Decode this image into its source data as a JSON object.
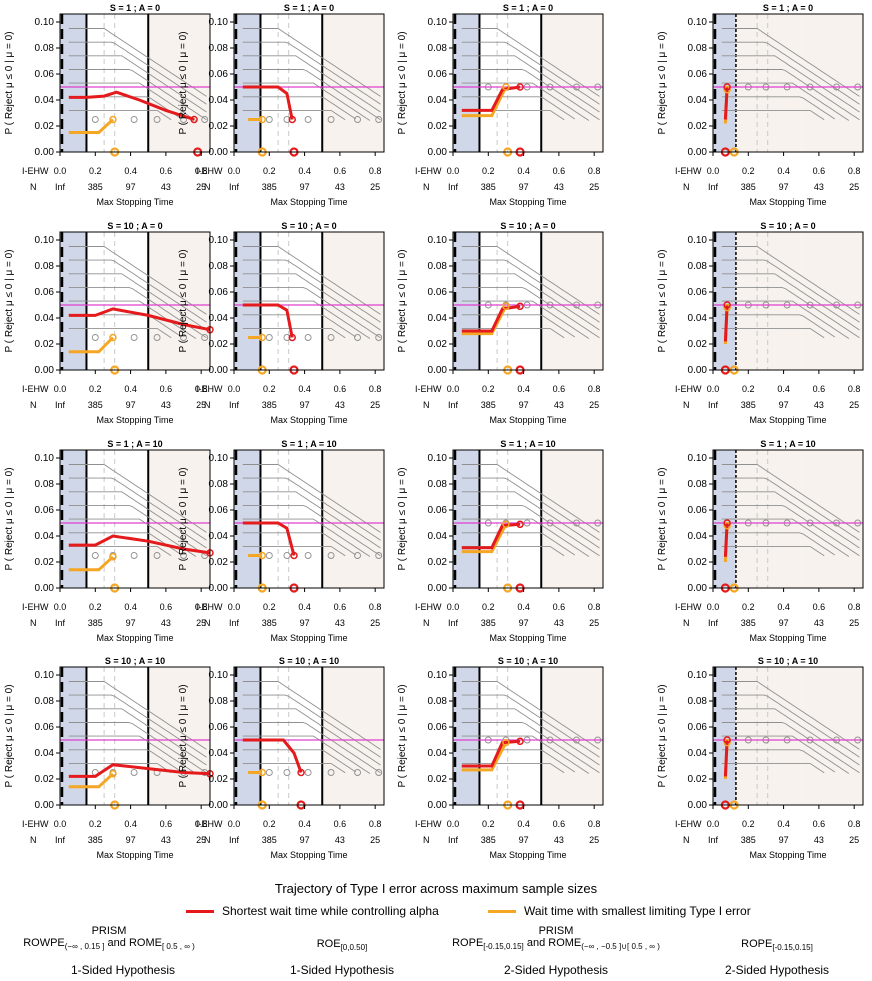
{
  "colors": {
    "red": "#e41a1c",
    "orange": "#f5a623",
    "magenta": "#e040d0",
    "grey": "#909090",
    "left_shade": "#cfd7e8",
    "right_shade": "#f7f2ee",
    "dash": "#c8c8c8"
  },
  "axis_text": {
    "ylabel": "P ( Reject μ ≤ 0 | μ = 0)",
    "xlabel": "Max Stopping Time",
    "row1_label": "I-EHW",
    "row2_label": "N",
    "x_ticks": [
      "0.0",
      "0.2",
      "0.4",
      "0.6",
      "0.8"
    ],
    "n_ticks": [
      "Inf",
      "385",
      "97",
      "43",
      "25"
    ],
    "y_ticks": [
      "0.00",
      "0.02",
      "0.04",
      "0.06",
      "0.08",
      "0.10"
    ]
  },
  "chart_data": [
    {
      "panel": "r1c1",
      "type": "line",
      "title": "S = 1 ; A = 0",
      "xlim": [
        0,
        0.85
      ],
      "ylim": [
        0,
        0.1
      ],
      "alpha": 0.05,
      "red_series": [
        [
          0.05,
          0.042
        ],
        [
          0.15,
          0.042
        ],
        [
          0.25,
          0.043
        ],
        [
          0.32,
          0.046
        ],
        [
          0.45,
          0.04
        ],
        [
          0.6,
          0.032
        ],
        [
          0.76,
          0.025
        ]
      ],
      "orange_series": [
        [
          0.05,
          0.015
        ],
        [
          0.22,
          0.015
        ],
        [
          0.3,
          0.025
        ]
      ],
      "red_marker": 0.78,
      "orange_marker": 0.31
    },
    {
      "panel": "r1c2",
      "type": "line",
      "title": "S = 1 ; A = 0",
      "xlim": [
        0,
        0.85
      ],
      "ylim": [
        0,
        0.1
      ],
      "alpha": 0.05,
      "red_series": [
        [
          0.05,
          0.05
        ],
        [
          0.25,
          0.05
        ],
        [
          0.3,
          0.045
        ],
        [
          0.33,
          0.025
        ]
      ],
      "orange_series": [
        [
          0.08,
          0.025
        ],
        [
          0.16,
          0.025
        ]
      ],
      "red_marker": 0.34,
      "orange_marker": 0.16
    },
    {
      "panel": "r1c3",
      "type": "line",
      "title": "S = 1 ; A = 0",
      "xlim": [
        0,
        0.85
      ],
      "ylim": [
        0,
        0.1
      ],
      "alpha": 0.05,
      "red_series": [
        [
          0.05,
          0.032
        ],
        [
          0.22,
          0.032
        ],
        [
          0.28,
          0.048
        ],
        [
          0.38,
          0.05
        ]
      ],
      "orange_series": [
        [
          0.05,
          0.028
        ],
        [
          0.22,
          0.028
        ],
        [
          0.3,
          0.05
        ]
      ],
      "red_marker": 0.38,
      "orange_marker": 0.31
    },
    {
      "panel": "r1c4",
      "type": "line",
      "title": "S = 1 ; A = 0",
      "xlim": [
        0,
        0.85
      ],
      "ylim": [
        0,
        0.1
      ],
      "alpha": 0.05,
      "red_series": [
        [
          0.07,
          0.025
        ],
        [
          0.08,
          0.05
        ]
      ],
      "orange_series": [
        [
          0.07,
          0.022
        ],
        [
          0.08,
          0.048
        ]
      ],
      "red_marker": 0.07,
      "orange_marker": 0.12
    },
    {
      "panel": "r2c1",
      "type": "line",
      "title": "S = 10 ; A = 0",
      "xlim": [
        0,
        0.85
      ],
      "ylim": [
        0,
        0.1
      ],
      "alpha": 0.05,
      "red_series": [
        [
          0.05,
          0.042
        ],
        [
          0.2,
          0.042
        ],
        [
          0.3,
          0.047
        ],
        [
          0.5,
          0.042
        ],
        [
          0.7,
          0.035
        ],
        [
          0.85,
          0.031
        ]
      ],
      "orange_series": [
        [
          0.05,
          0.014
        ],
        [
          0.22,
          0.014
        ],
        [
          0.3,
          0.025
        ]
      ],
      "red_marker": null,
      "orange_marker": 0.31
    },
    {
      "panel": "r2c2",
      "type": "line",
      "title": "S = 10 ; A = 0",
      "xlim": [
        0,
        0.85
      ],
      "ylim": [
        0,
        0.1
      ],
      "alpha": 0.05,
      "red_series": [
        [
          0.05,
          0.05
        ],
        [
          0.25,
          0.05
        ],
        [
          0.3,
          0.046
        ],
        [
          0.33,
          0.025
        ]
      ],
      "orange_series": [
        [
          0.08,
          0.025
        ],
        [
          0.16,
          0.025
        ]
      ],
      "red_marker": 0.34,
      "orange_marker": 0.16
    },
    {
      "panel": "r2c3",
      "type": "line",
      "title": "S = 10 ; A = 0",
      "xlim": [
        0,
        0.85
      ],
      "ylim": [
        0,
        0.1
      ],
      "alpha": 0.05,
      "red_series": [
        [
          0.05,
          0.03
        ],
        [
          0.22,
          0.03
        ],
        [
          0.28,
          0.047
        ],
        [
          0.38,
          0.049
        ]
      ],
      "orange_series": [
        [
          0.05,
          0.028
        ],
        [
          0.22,
          0.028
        ],
        [
          0.3,
          0.049
        ]
      ],
      "red_marker": 0.38,
      "orange_marker": 0.31
    },
    {
      "panel": "r2c4",
      "type": "line",
      "title": "S = 10 ; A = 0",
      "xlim": [
        0,
        0.85
      ],
      "ylim": [
        0,
        0.1
      ],
      "alpha": 0.05,
      "red_series": [
        [
          0.07,
          0.022
        ],
        [
          0.08,
          0.05
        ]
      ],
      "orange_series": [
        [
          0.07,
          0.02
        ],
        [
          0.08,
          0.048
        ]
      ],
      "red_marker": 0.07,
      "orange_marker": 0.12
    },
    {
      "panel": "r3c1",
      "type": "line",
      "title": "S = 1 ; A = 10",
      "xlim": [
        0,
        0.85
      ],
      "ylim": [
        0,
        0.1
      ],
      "alpha": 0.05,
      "red_series": [
        [
          0.05,
          0.033
        ],
        [
          0.2,
          0.033
        ],
        [
          0.3,
          0.04
        ],
        [
          0.5,
          0.036
        ],
        [
          0.7,
          0.03
        ],
        [
          0.85,
          0.027
        ]
      ],
      "orange_series": [
        [
          0.05,
          0.014
        ],
        [
          0.22,
          0.014
        ],
        [
          0.3,
          0.024
        ]
      ],
      "red_marker": null,
      "orange_marker": 0.31
    },
    {
      "panel": "r3c2",
      "type": "line",
      "title": "S = 1 ; A = 10",
      "xlim": [
        0,
        0.85
      ],
      "ylim": [
        0,
        0.1
      ],
      "alpha": 0.05,
      "red_series": [
        [
          0.05,
          0.05
        ],
        [
          0.25,
          0.05
        ],
        [
          0.3,
          0.046
        ],
        [
          0.34,
          0.025
        ]
      ],
      "orange_series": [
        [
          0.08,
          0.025
        ],
        [
          0.16,
          0.025
        ]
      ],
      "red_marker": 0.34,
      "orange_marker": 0.16
    },
    {
      "panel": "r3c3",
      "type": "line",
      "title": "S = 1 ; A = 10",
      "xlim": [
        0,
        0.85
      ],
      "ylim": [
        0,
        0.1
      ],
      "alpha": 0.05,
      "red_series": [
        [
          0.05,
          0.031
        ],
        [
          0.22,
          0.031
        ],
        [
          0.28,
          0.048
        ],
        [
          0.38,
          0.049
        ]
      ],
      "orange_series": [
        [
          0.05,
          0.028
        ],
        [
          0.22,
          0.028
        ],
        [
          0.3,
          0.049
        ]
      ],
      "red_marker": 0.38,
      "orange_marker": 0.31
    },
    {
      "panel": "r3c4",
      "type": "line",
      "title": "S = 1 ; A = 10",
      "xlim": [
        0,
        0.85
      ],
      "ylim": [
        0,
        0.1
      ],
      "alpha": 0.05,
      "red_series": [
        [
          0.07,
          0.024
        ],
        [
          0.08,
          0.05
        ]
      ],
      "orange_series": [
        [
          0.07,
          0.02
        ],
        [
          0.08,
          0.048
        ]
      ],
      "red_marker": 0.07,
      "orange_marker": 0.12
    },
    {
      "panel": "r4c1",
      "type": "line",
      "title": "S = 10 ; A = 10",
      "xlim": [
        0,
        0.85
      ],
      "ylim": [
        0,
        0.1
      ],
      "alpha": 0.05,
      "red_series": [
        [
          0.05,
          0.022
        ],
        [
          0.2,
          0.022
        ],
        [
          0.3,
          0.031
        ],
        [
          0.5,
          0.028
        ],
        [
          0.7,
          0.025
        ],
        [
          0.85,
          0.024
        ]
      ],
      "orange_series": [
        [
          0.05,
          0.014
        ],
        [
          0.22,
          0.014
        ],
        [
          0.3,
          0.024
        ]
      ],
      "red_marker": null,
      "orange_marker": 0.31
    },
    {
      "panel": "r4c2",
      "type": "line",
      "title": "S = 10 ; A = 10",
      "xlim": [
        0,
        0.85
      ],
      "ylim": [
        0,
        0.1
      ],
      "alpha": 0.05,
      "red_series": [
        [
          0.05,
          0.05
        ],
        [
          0.28,
          0.05
        ],
        [
          0.34,
          0.04
        ],
        [
          0.38,
          0.025
        ]
      ],
      "orange_series": [
        [
          0.08,
          0.025
        ],
        [
          0.16,
          0.025
        ]
      ],
      "red_marker": 0.38,
      "orange_marker": 0.16
    },
    {
      "panel": "r4c3",
      "type": "line",
      "title": "S = 10 ; A = 10",
      "xlim": [
        0,
        0.85
      ],
      "ylim": [
        0,
        0.1
      ],
      "alpha": 0.05,
      "red_series": [
        [
          0.05,
          0.03
        ],
        [
          0.22,
          0.03
        ],
        [
          0.28,
          0.048
        ],
        [
          0.38,
          0.049
        ]
      ],
      "orange_series": [
        [
          0.05,
          0.027
        ],
        [
          0.22,
          0.027
        ],
        [
          0.3,
          0.048
        ]
      ],
      "red_marker": 0.38,
      "orange_marker": 0.31
    },
    {
      "panel": "r4c4",
      "type": "line",
      "title": "S = 10 ; A = 10",
      "xlim": [
        0,
        0.85
      ],
      "ylim": [
        0,
        0.1
      ],
      "alpha": 0.05,
      "red_series": [
        [
          0.07,
          0.022
        ],
        [
          0.08,
          0.05
        ]
      ],
      "orange_series": [
        [
          0.07,
          0.02
        ],
        [
          0.08,
          0.048
        ]
      ],
      "red_marker": 0.07,
      "orange_marker": 0.12
    }
  ],
  "legend": {
    "title": "Trajectory of Type I error across maximum sample sizes",
    "red_label": "Shortest wait time while controlling alpha",
    "orange_label": "Wait time with smallest limiting Type I error"
  },
  "columns": [
    {
      "top": "PRISM",
      "main": "ROWPE",
      "main_sub": "(−∞ , 0.15 ]",
      "mid": " and ROME",
      "mid_sub": "[ 0.5 , ∞ )",
      "hyp": "1-Sided Hypothesis"
    },
    {
      "top": "",
      "main": "ROE",
      "main_sub": "[0,0.50]",
      "mid": "",
      "mid_sub": "",
      "hyp": "1-Sided Hypothesis"
    },
    {
      "top": "PRISM",
      "main": "ROPE",
      "main_sub": "[-0.15,0.15]",
      "mid": " and ROME",
      "mid_sub": "(−∞ , −0.5 ]∪[ 0.5 , ∞ )",
      "hyp": "2-Sided Hypothesis"
    },
    {
      "top": "",
      "main": "ROPE",
      "main_sub": "[-0.15,0.15]",
      "mid": "",
      "mid_sub": "",
      "hyp": "2-Sided Hypothesis"
    }
  ]
}
